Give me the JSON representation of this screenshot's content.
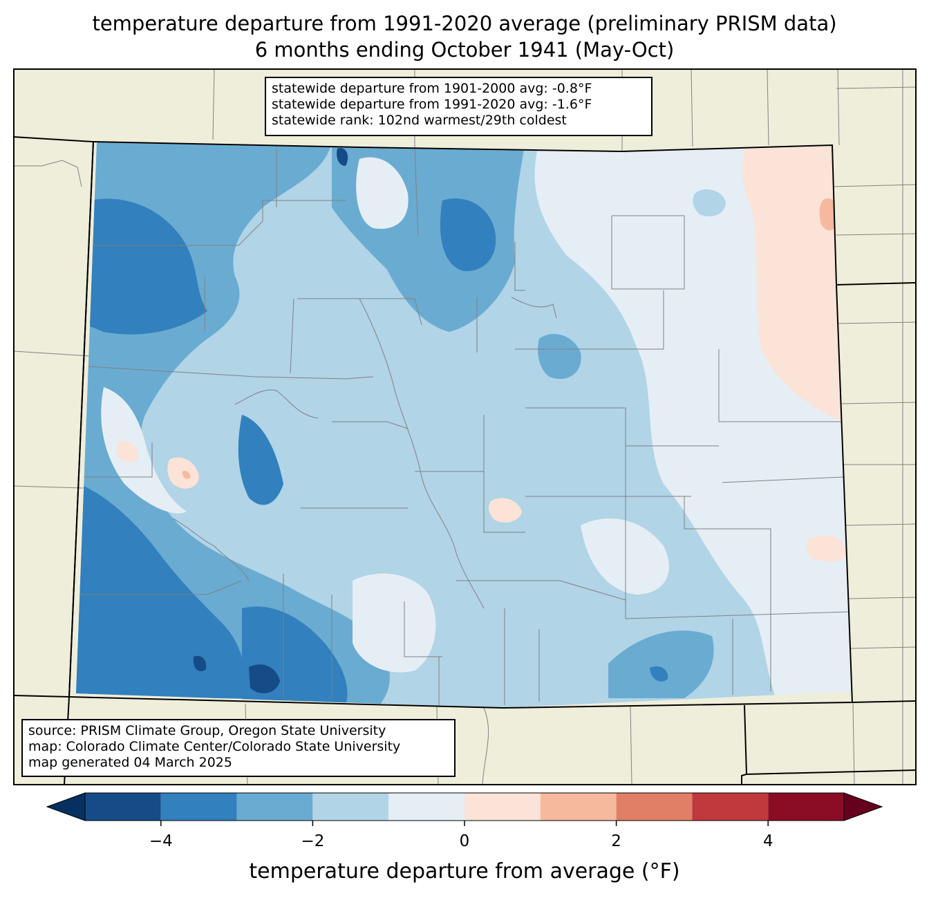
{
  "title": {
    "line1": "temperature departure from 1991-2020 average (preliminary PRISM data)",
    "line2": "6 months ending October 1941 (May-Oct)"
  },
  "stats": {
    "line1": "statewide departure from 1901-2000 avg: -0.8°F",
    "line2": "statewide departure from 1991-2020 avg: -1.6°F",
    "line3": "statewide rank: 102nd warmest/29th coldest"
  },
  "source": {
    "line1": "source: PRISM Climate Group, Oregon State University",
    "line2": "map: Colorado Climate Center/Colorado State University",
    "line3": "map generated 04 March 2025"
  },
  "colorbar": {
    "label": "temperature departure from average (°F)",
    "ticks": [
      "−4",
      "−2",
      "0",
      "2",
      "4"
    ],
    "bins": [
      -5,
      -4,
      -3,
      -2,
      -1,
      0,
      1,
      2,
      3,
      4,
      5
    ],
    "colors": [
      "#154c87",
      "#3280bd",
      "#6aabd2",
      "#b1d4e7",
      "#e6eef5",
      "#fbe3d7",
      "#f7b99d",
      "#e07f66",
      "#c0393d",
      "#8b0d25"
    ],
    "under_color": "#053061",
    "over_color": "#67001f"
  },
  "colors": {
    "land": "#efeedb",
    "state_border": "#000000",
    "county_border": "#808080"
  }
}
